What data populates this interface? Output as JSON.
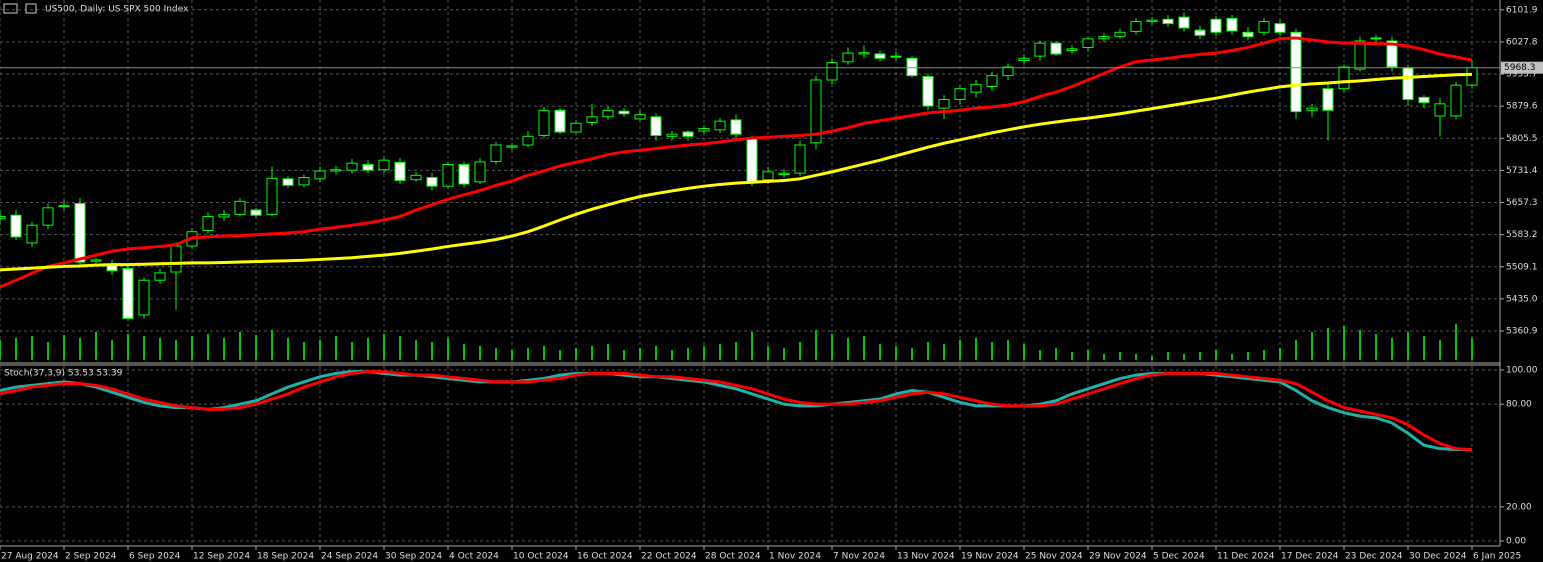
{
  "chart_data": [
    {
      "type": "candlestick",
      "title": "US500, Daily: US SPX 500 Index",
      "categories": [
        "27 Aug 2024",
        null,
        null,
        null,
        "2 Sep 2024",
        null,
        null,
        null,
        "6 Sep 2024",
        null,
        null,
        null,
        "12 Sep 2024",
        null,
        null,
        null,
        "18 Sep 2024",
        null,
        null,
        null,
        "24 Sep 2024",
        null,
        null,
        null,
        "30 Sep 2024",
        null,
        null,
        null,
        "4 Oct 2024",
        null,
        null,
        null,
        "10 Oct 2024",
        null,
        null,
        null,
        "16 Oct 2024",
        null,
        null,
        null,
        "22 Oct 2024",
        null,
        null,
        null,
        "28 Oct 2024",
        null,
        null,
        null,
        "1 Nov 2024",
        null,
        null,
        null,
        "7 Nov 2024",
        null,
        null,
        null,
        "13 Nov 2024",
        null,
        null,
        null,
        "19 Nov 2024",
        null,
        null,
        null,
        "25 Nov 2024",
        null,
        null,
        null,
        "29 Nov 2024",
        null,
        null,
        null,
        "5 Dec 2024",
        null,
        null,
        null,
        "11 Dec 2024",
        null,
        null,
        null,
        "17 Dec 2024",
        null,
        null,
        null,
        "23 Dec 2024",
        null,
        null,
        null,
        "30 Dec 2024",
        null,
        null,
        null,
        "6 Jan 2025"
      ],
      "open": [
        5620,
        5628,
        5564,
        5605,
        5648,
        5655,
        5522,
        5515,
        5505,
        5398,
        5478,
        5497,
        5557,
        5593,
        5624,
        5630,
        5640,
        5630,
        5712,
        5698,
        5712,
        5730,
        5732,
        5745,
        5733,
        5750,
        5710,
        5715,
        5695,
        5745,
        5705,
        5752,
        5785,
        5790,
        5812,
        5870,
        5820,
        5842,
        5855,
        5868,
        5850,
        5855,
        5810,
        5820,
        5822,
        5825,
        5848,
        5805,
        5710,
        5722,
        5725,
        5795,
        5940,
        5982,
        6000,
        6000,
        5995,
        5990,
        5948,
        5875,
        5895,
        5912,
        5925,
        5950,
        5985,
        5995,
        6025,
        6008,
        6015,
        6035,
        6040,
        6052,
        6075,
        6080,
        6085,
        6055,
        6080,
        6082,
        6050,
        6050,
        6070,
        6050,
        5870,
        5920,
        5920,
        5965,
        6035,
        6030,
        5968,
        5900,
        5857,
        5857,
        5928
      ],
      "high": [
        5640,
        5640,
        5612,
        5655,
        5662,
        5668,
        5530,
        5525,
        5512,
        5485,
        5505,
        5565,
        5598,
        5635,
        5640,
        5668,
        5645,
        5740,
        5718,
        5722,
        5740,
        5742,
        5758,
        5755,
        5762,
        5760,
        5728,
        5725,
        5752,
        5752,
        5760,
        5798,
        5795,
        5822,
        5878,
        5875,
        5848,
        5885,
        5880,
        5875,
        5870,
        5862,
        5822,
        5825,
        5835,
        5852,
        5860,
        5812,
        5740,
        5735,
        5800,
        5950,
        5990,
        6015,
        6020,
        6008,
        6005,
        5995,
        5955,
        5905,
        5928,
        5940,
        5958,
        5978,
        5998,
        6030,
        6030,
        6020,
        6040,
        6048,
        6058,
        6082,
        6085,
        6090,
        6095,
        6065,
        6088,
        6090,
        6062,
        6082,
        6080,
        6058,
        5885,
        5935,
        5975,
        6040,
        6045,
        6040,
        5975,
        5905,
        5898,
        5935,
        5985
      ],
      "low": [
        5605,
        5570,
        5555,
        5595,
        5640,
        5510,
        5512,
        5490,
        5385,
        5390,
        5470,
        5410,
        5550,
        5585,
        5615,
        5625,
        5620,
        5625,
        5690,
        5692,
        5705,
        5722,
        5725,
        5725,
        5725,
        5700,
        5705,
        5685,
        5690,
        5692,
        5700,
        5745,
        5778,
        5785,
        5805,
        5815,
        5815,
        5835,
        5848,
        5855,
        5845,
        5800,
        5800,
        5800,
        5815,
        5818,
        5805,
        5695,
        5700,
        5715,
        5718,
        5780,
        5930,
        5975,
        5990,
        5982,
        5985,
        5945,
        5870,
        5850,
        5885,
        5900,
        5915,
        5940,
        5975,
        5985,
        5995,
        6000,
        6005,
        6028,
        6035,
        6045,
        6068,
        6062,
        6052,
        6035,
        6042,
        6045,
        6032,
        6042,
        6042,
        5850,
        5855,
        5800,
        5912,
        5960,
        6025,
        5960,
        5880,
        5875,
        5810,
        5850,
        5920
      ],
      "close": [
        5625,
        5578,
        5605,
        5645,
        5650,
        5520,
        5525,
        5500,
        5390,
        5478,
        5495,
        5557,
        5590,
        5625,
        5630,
        5660,
        5628,
        5713,
        5697,
        5715,
        5730,
        5733,
        5748,
        5732,
        5755,
        5708,
        5720,
        5695,
        5745,
        5700,
        5751,
        5790,
        5788,
        5810,
        5870,
        5820,
        5840,
        5855,
        5870,
        5862,
        5860,
        5812,
        5815,
        5810,
        5828,
        5845,
        5815,
        5705,
        5728,
        5725,
        5790,
        5940,
        5980,
        6002,
        6003,
        5990,
        5993,
        5950,
        5880,
        5895,
        5920,
        5930,
        5950,
        5970,
        5990,
        6025,
        6000,
        6012,
        6035,
        6040,
        6050,
        6075,
        6078,
        6070,
        6060,
        6043,
        6050,
        6053,
        6040,
        6075,
        6050,
        5867,
        5875,
        5870,
        5970,
        6030,
        6037,
        5970,
        5895,
        5888,
        5885,
        5928,
        5968.3
      ],
      "up_color": "#000000",
      "down_color": "#ffffff",
      "outline_color": "#00ff00",
      "overlays": [
        {
          "color": "#ff0000",
          "values": [
            5462,
            5478,
            5494,
            5510,
            5518,
            5527,
            5536,
            5545,
            5550,
            5553,
            5556,
            5560,
            5576,
            5578,
            5580,
            5581,
            5583,
            5585,
            5587,
            5590,
            5596,
            5600,
            5605,
            5610,
            5617,
            5625,
            5640,
            5652,
            5665,
            5675,
            5685,
            5697,
            5707,
            5720,
            5730,
            5742,
            5750,
            5758,
            5768,
            5774,
            5778,
            5782,
            5786,
            5790,
            5793,
            5797,
            5802,
            5806,
            5808,
            5810,
            5812,
            5815,
            5822,
            5830,
            5840,
            5846,
            5852,
            5858,
            5864,
            5867,
            5870,
            5875,
            5878,
            5882,
            5890,
            5902,
            5912,
            5925,
            5940,
            5955,
            5970,
            5982,
            5986,
            5990,
            5995,
            5999,
            6002,
            6008,
            6015,
            6025,
            6035,
            6037,
            6032,
            6028,
            6025,
            6025,
            6024,
            6023,
            6018,
            6010,
            6000,
            5993,
            5986
          ]
        },
        {
          "color": "#ffff00",
          "values": [
            5502,
            5504,
            5506,
            5508,
            5510,
            5511,
            5513,
            5514,
            5514,
            5515,
            5516,
            5517,
            5518,
            5518,
            5519,
            5520,
            5521,
            5522,
            5523,
            5524,
            5526,
            5528,
            5530,
            5533,
            5536,
            5540,
            5545,
            5550,
            5556,
            5561,
            5566,
            5572,
            5580,
            5590,
            5603,
            5617,
            5630,
            5642,
            5652,
            5662,
            5671,
            5678,
            5684,
            5690,
            5695,
            5699,
            5702,
            5704,
            5706,
            5708,
            5712,
            5720,
            5728,
            5737,
            5746,
            5755,
            5765,
            5775,
            5785,
            5794,
            5802,
            5810,
            5818,
            5825,
            5832,
            5838,
            5843,
            5848,
            5852,
            5857,
            5862,
            5868,
            5874,
            5880,
            5886,
            5892,
            5898,
            5905,
            5912,
            5918,
            5924,
            5928,
            5931,
            5933,
            5936,
            5938,
            5941,
            5944,
            5946,
            5948,
            5950,
            5952,
            5953
          ]
        }
      ],
      "volume": {
        "color": "#00c800",
        "ylim": [
          0,
          40
        ],
        "values": [
          20,
          22,
          24,
          18,
          25,
          22,
          28,
          20,
          26,
          24,
          22,
          20,
          24,
          26,
          22,
          28,
          25,
          30,
          22,
          18,
          20,
          24,
          18,
          22,
          26,
          24,
          20,
          18,
          22,
          16,
          14,
          12,
          10,
          12,
          14,
          10,
          12,
          14,
          16,
          10,
          12,
          14,
          10,
          12,
          14,
          16,
          18,
          28,
          14,
          12,
          18,
          30,
          26,
          22,
          24,
          16,
          14,
          12,
          18,
          16,
          20,
          22,
          18,
          20,
          16,
          10,
          12,
          8,
          10,
          6,
          8,
          6,
          4,
          8,
          6,
          8,
          10,
          6,
          8,
          10,
          12,
          20,
          28,
          32,
          34,
          30,
          26,
          22,
          28,
          24,
          20,
          36,
          22
        ]
      },
      "ylim": [
        5289.4,
        6124.5
      ],
      "yticks": [
        6101.9,
        6027.8,
        5953.7,
        5879.6,
        5805.5,
        5731.4,
        5657.3,
        5583.2,
        5509.1,
        {
          "value": 5435,
          "label": "5435.0"
        },
        5360.9
      ],
      "grid": true
    },
    {
      "type": "stochastic",
      "title": "Stoch(37,3,9) 53.53 53.39",
      "series": [
        {
          "color": "#20b2aa",
          "values": [
            88,
            90,
            91,
            92,
            93,
            92,
            90,
            87,
            84,
            81,
            79,
            78,
            78,
            77,
            78,
            80,
            82,
            86,
            90,
            93,
            96,
            98,
            99,
            99,
            98,
            97,
            97,
            96,
            95,
            94,
            93,
            93,
            93,
            94,
            95,
            97,
            98,
            98,
            98,
            97,
            96,
            96,
            95,
            94,
            93,
            91,
            89,
            86,
            83,
            80,
            79,
            79,
            80,
            81,
            82,
            83,
            86,
            88,
            87,
            84,
            81,
            79,
            79,
            79,
            79,
            80,
            82,
            86,
            89,
            92,
            95,
            97,
            98,
            98,
            98,
            98,
            97,
            96,
            95,
            94,
            93,
            88,
            82,
            78,
            75,
            73,
            72,
            69,
            63,
            56,
            54,
            53.5,
            53.53
          ]
        },
        {
          "color": "#ff0000",
          "values": [
            86,
            88,
            90,
            91,
            92,
            92,
            91,
            89,
            86,
            83,
            81,
            79,
            78,
            77,
            77,
            78,
            80,
            83,
            86,
            90,
            93,
            96,
            98,
            99,
            99,
            98,
            97,
            97,
            96,
            95,
            94,
            93,
            93,
            93,
            94,
            95,
            97,
            98,
            98,
            98,
            97,
            96,
            96,
            95,
            94,
            93,
            91,
            89,
            86,
            83,
            81,
            80,
            80,
            80,
            81,
            82,
            84,
            86,
            87,
            86,
            84,
            82,
            80,
            79,
            79,
            79,
            80,
            83,
            86,
            89,
            92,
            95,
            97,
            98,
            98,
            98,
            98,
            97,
            96,
            95,
            94,
            92,
            87,
            82,
            78,
            76,
            74,
            72,
            68,
            62,
            57,
            54,
            53.39
          ]
        }
      ],
      "ylim": [
        -2.9,
        102.9
      ],
      "yticks": [
        {
          "value": 100,
          "label": "100.00"
        },
        {
          "value": 80,
          "label": "80.00"
        },
        {
          "value": 20,
          "label": "20.00"
        },
        {
          "value": 0,
          "label": "0.00"
        }
      ],
      "grid": true
    }
  ]
}
